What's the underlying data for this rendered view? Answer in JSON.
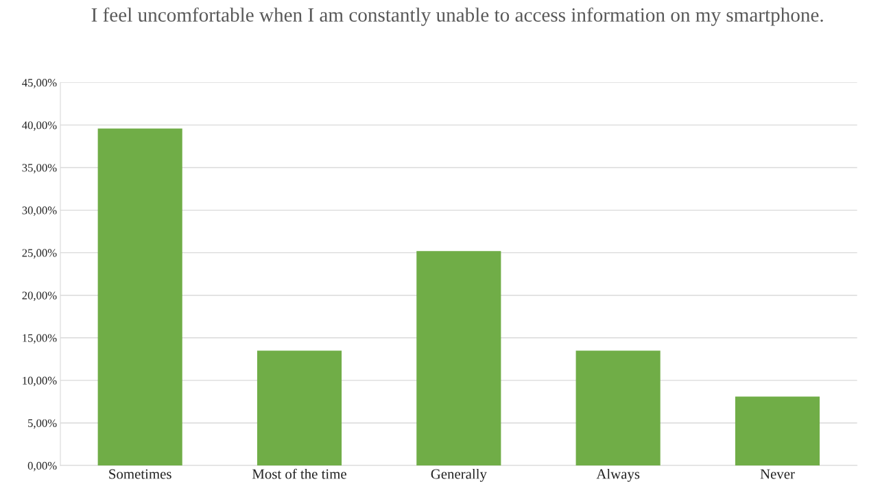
{
  "chart_data": {
    "type": "bar",
    "title": "I feel uncomfortable when I am constantly unable to access information on my smartphone.",
    "categories": [
      "Sometimes",
      "Most of the time",
      "Generally",
      "Always",
      "Never"
    ],
    "values": [
      39.6,
      13.5,
      25.2,
      13.5,
      8.1
    ],
    "color": "#70ad47",
    "ylim": [
      0,
      45
    ],
    "yticks": [
      {
        "value": 0,
        "label": "0,00%"
      },
      {
        "value": 5,
        "label": "5,00%"
      },
      {
        "value": 10,
        "label": "10,00%"
      },
      {
        "value": 15,
        "label": "15,00%"
      },
      {
        "value": 20,
        "label": "20,00%"
      },
      {
        "value": 25,
        "label": "25,00%"
      },
      {
        "value": 30,
        "label": "30,00%"
      },
      {
        "value": 35,
        "label": "35,00%"
      },
      {
        "value": 40,
        "label": "40,00%"
      },
      {
        "value": 45,
        "label": "45,00%"
      }
    ],
    "grid": "y"
  }
}
